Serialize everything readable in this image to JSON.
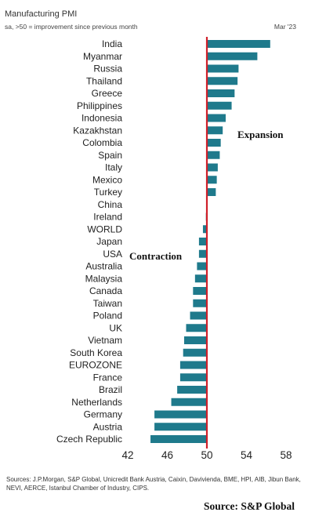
{
  "chart_data": {
    "type": "bar",
    "orientation": "horizontal",
    "title": "Manufacturing PMI",
    "subtitle": "sa, >50 = improvement since previous month",
    "date": "Mar '23",
    "categories": [
      "India",
      "Myanmar",
      "Russia",
      "Thailand",
      "Greece",
      "Philippines",
      "Indonesia",
      "Kazakhstan",
      "Colombia",
      "Spain",
      "Italy",
      "Mexico",
      "Turkey",
      "China",
      "Ireland",
      "WORLD",
      "Japan",
      "USA",
      "Australia",
      "Malaysia",
      "Canada",
      "Taiwan",
      "Poland",
      "UK",
      "Vietnam",
      "South Korea",
      "EUROZONE",
      "France",
      "Brazil",
      "Netherlands",
      "Germany",
      "Austria",
      "Czech Republic"
    ],
    "values": [
      56.4,
      55.1,
      53.2,
      53.1,
      52.8,
      52.5,
      51.9,
      51.6,
      51.4,
      51.3,
      51.1,
      51.0,
      50.9,
      50.0,
      49.9,
      49.6,
      49.2,
      49.2,
      49.0,
      48.8,
      48.6,
      48.6,
      48.3,
      47.9,
      47.7,
      47.6,
      47.3,
      47.3,
      47.0,
      46.4,
      44.7,
      44.7,
      44.3
    ],
    "xticks": [
      42,
      46,
      50,
      54,
      58
    ],
    "xlim": [
      42,
      58
    ],
    "reference_value": 50,
    "colors": {
      "bar": "#1f7a8c",
      "reference_line": "#d0202a"
    },
    "annotations": {
      "expansion": "Expansion",
      "contraction": "Contraction"
    }
  },
  "footer": {
    "sources": "Sources: J.P.Morgan, S&P Global, Unicredit Bank Austria, Caixin, Davivienda, BME, HPI, AIB, Jibun Bank, NEVI, AERCE, Istanbul Chamber of Industry, CIPS.",
    "credit": "Source:  S&P Global"
  }
}
